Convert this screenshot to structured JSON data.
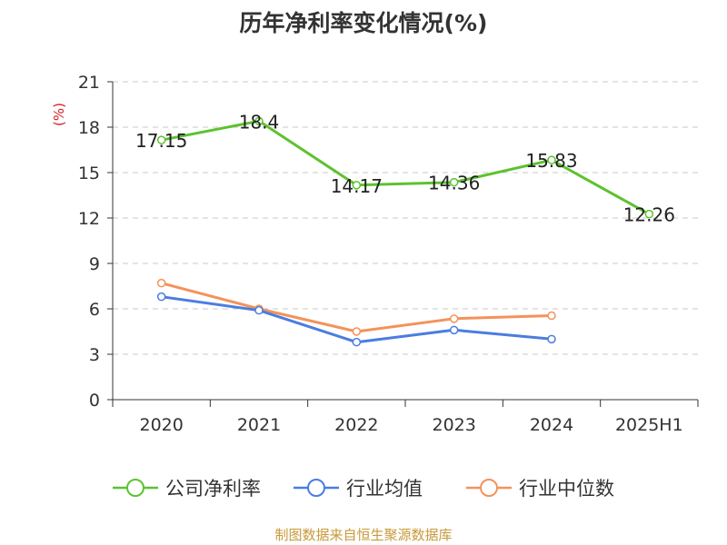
{
  "chart_data": {
    "type": "line",
    "title": "历年净利率变化情况(%)",
    "ylabel": "(%)",
    "categories": [
      "2020",
      "2021",
      "2022",
      "2023",
      "2024",
      "2025H1"
    ],
    "ylim": [
      0,
      21
    ],
    "yticks": [
      0,
      3,
      6,
      9,
      12,
      15,
      18,
      21
    ],
    "grid": true,
    "legend_position": "bottom",
    "series": [
      {
        "name": "公司净利率",
        "color": "#5dc22f",
        "show_labels": true,
        "values": [
          17.15,
          18.4,
          14.17,
          14.36,
          15.83,
          12.26
        ],
        "labels": [
          "17.15",
          "18.4",
          "14.17",
          "14.36",
          "15.83",
          "12.26"
        ]
      },
      {
        "name": "行业均值",
        "color": "#4a7de0",
        "show_labels": false,
        "values": [
          6.8,
          5.9,
          3.8,
          4.6,
          4.0,
          null
        ]
      },
      {
        "name": "行业中位数",
        "color": "#f4925a",
        "show_labels": false,
        "values": [
          7.7,
          6.0,
          4.5,
          5.35,
          5.55,
          null
        ]
      }
    ]
  },
  "source": "制图数据来自恒生聚源数据库"
}
